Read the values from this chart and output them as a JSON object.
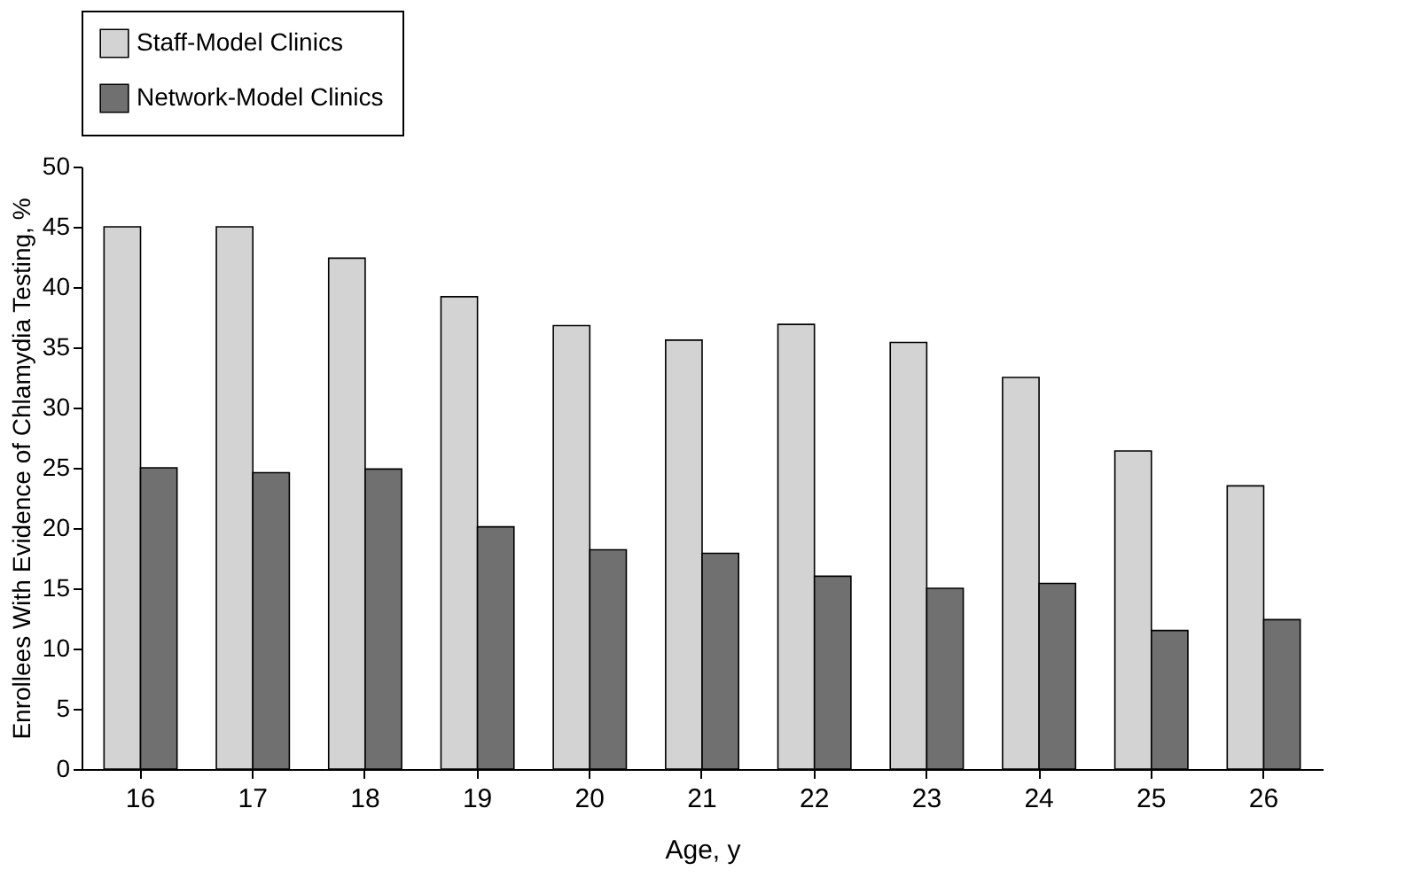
{
  "chart_data": {
    "type": "bar",
    "xlabel": "Age, y",
    "ylabel": "Enrollees With Evidence of Chlamydia Testing, %",
    "categories": [
      "16",
      "17",
      "18",
      "19",
      "20",
      "21",
      "22",
      "23",
      "24",
      "25",
      "26"
    ],
    "series": [
      {
        "name": "Staff-Model Clinics",
        "color": "#d3d3d3",
        "values": [
          45,
          45,
          42.4,
          39.2,
          36.8,
          35.6,
          36.9,
          35.4,
          32.5,
          26.4,
          23.5
        ]
      },
      {
        "name": "Network-Model Clinics",
        "color": "#707070",
        "values": [
          25,
          24.6,
          24.9,
          20.1,
          18.2,
          17.9,
          16,
          15,
          15.4,
          11.5,
          12.4
        ]
      }
    ],
    "ylim": [
      0,
      50
    ],
    "yticks": [
      0,
      5,
      10,
      15,
      20,
      25,
      30,
      35,
      40,
      45,
      50
    ],
    "grid": false,
    "legend": "top"
  }
}
